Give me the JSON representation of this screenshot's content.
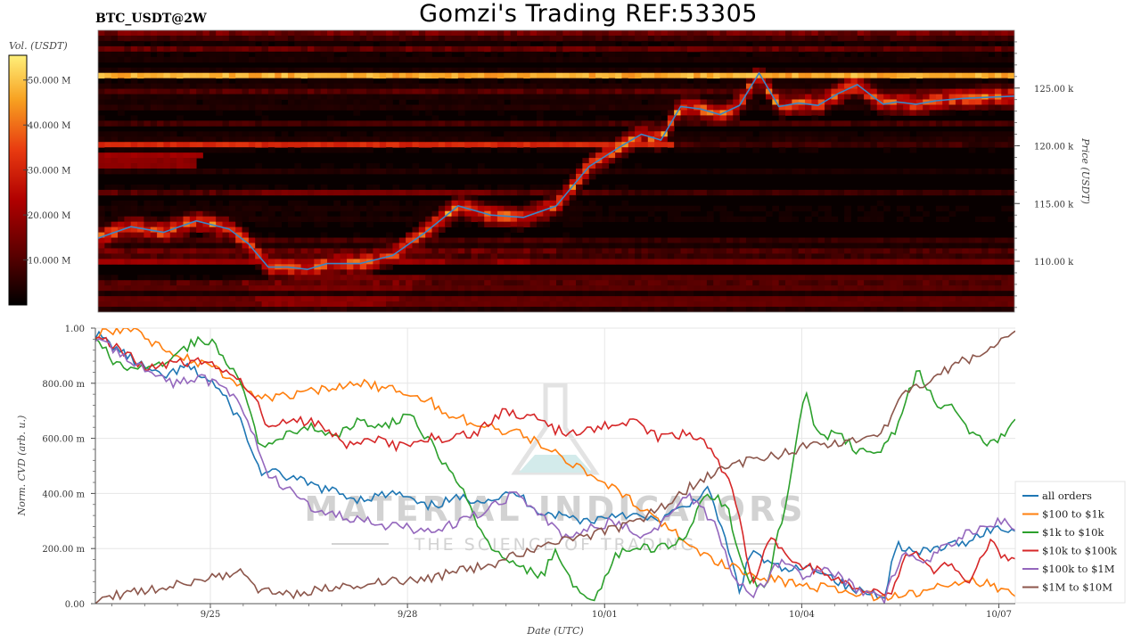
{
  "header": {
    "pair_label": "BTC_USDT@2W",
    "title": "Gomzi's Trading REF:53305"
  },
  "colorbar": {
    "label": "Vol. (USDT)",
    "ticks": [
      "50.000 M",
      "40.000 M",
      "30.000 M",
      "20.000 M",
      "10.000 M"
    ],
    "colors": [
      "#000000",
      "#5a0000",
      "#b00000",
      "#e83a10",
      "#f7a020",
      "#fff07a"
    ]
  },
  "watermark": {
    "main": "MATERIAL INDICATORS",
    "sub": "THE SCIENCE OF TRADING"
  },
  "chart_data": [
    {
      "type": "heatmap",
      "title": "BTC_USDT@2W",
      "ylabel": "Price (USDT)",
      "y_ticks": [
        "110.00 k",
        "115.00 k",
        "120.00 k",
        "125.00 k"
      ],
      "ylim": [
        105600,
        130000
      ],
      "price_series": {
        "name": "price",
        "color": "#3a86c8",
        "t": [
          0,
          0.5,
          1,
          1.5,
          2,
          2.3,
          2.6,
          2.9,
          3.2,
          3.5,
          4,
          4.5,
          5,
          5.5,
          6,
          6.5,
          7,
          7.5,
          8,
          8.3,
          8.6,
          8.9,
          9.2,
          9.5,
          9.8,
          10.1,
          10.4,
          10.7,
          11,
          11.3,
          11.6,
          11.9,
          12,
          12.2,
          12.5,
          12.8,
          13.2,
          13.6,
          14
        ],
        "values": [
          112000,
          113000,
          112500,
          113500,
          112800,
          111500,
          109500,
          109500,
          109300,
          109800,
          109800,
          110500,
          112500,
          114800,
          114000,
          113800,
          114800,
          118200,
          120000,
          121000,
          120500,
          123400,
          123200,
          122700,
          123500,
          126300,
          123400,
          123700,
          123500,
          124500,
          125300,
          124000,
          123600,
          123800,
          123600,
          123900,
          124100,
          124200,
          124300
        ]
      },
      "liquidity_bands": [
        {
          "price": 126200,
          "intensity": 0.92,
          "t_start": 0,
          "t_end": 14
        },
        {
          "price": 120000,
          "intensity": 0.6,
          "t_start": 0,
          "t_end": 8.8
        },
        {
          "price": 119100,
          "intensity": 0.4,
          "t_start": 0,
          "t_end": 1.6
        },
        {
          "price": 118500,
          "intensity": 0.35,
          "t_start": 0,
          "t_end": 1.5
        },
        {
          "price": 116000,
          "intensity": 0.3,
          "t_start": 2.5,
          "t_end": 6
        },
        {
          "price": 110000,
          "intensity": 0.4,
          "t_start": 0,
          "t_end": 14
        },
        {
          "price": 108500,
          "intensity": 0.3,
          "t_start": 3,
          "t_end": 14
        },
        {
          "price": 107500,
          "intensity": 0.3,
          "t_start": 0,
          "t_end": 14
        },
        {
          "price": 106500,
          "intensity": 0.35,
          "t_start": 0,
          "t_end": 14
        }
      ]
    },
    {
      "type": "line",
      "xlabel": "Date (UTC)",
      "ylabel": "Norm. CVD (arb. u.)",
      "x_ticks": [
        {
          "t": 1.75,
          "label": "9/25"
        },
        {
          "t": 4.75,
          "label": "9/28"
        },
        {
          "t": 7.75,
          "label": "10/01"
        },
        {
          "t": 10.75,
          "label": "10/04"
        },
        {
          "t": 13.75,
          "label": "10/07"
        }
      ],
      "y_ticks": [
        "0.00",
        "200.00 m",
        "400.00 m",
        "600.00 m",
        "800.00 m",
        "1.00"
      ],
      "ylim": [
        0,
        1
      ],
      "xlim": [
        0,
        14
      ],
      "grid": true,
      "legend_position": "right",
      "series": [
        {
          "name": "all orders",
          "color": "#1f77b4",
          "t": [
            0,
            0.3,
            0.6,
            1,
            1.4,
            1.8,
            2.2,
            2.5,
            2.8,
            3.3,
            4,
            4.6,
            5,
            5.5,
            6,
            6.4,
            6.8,
            7.1,
            7.5,
            8,
            8.5,
            9,
            9.3,
            9.5,
            9.8,
            10,
            10.2,
            10.5,
            11,
            11.5,
            12,
            12.2,
            12.5,
            12.8,
            13.2,
            13.6,
            14
          ],
          "values": [
            0.98,
            0.93,
            0.88,
            0.82,
            0.86,
            0.8,
            0.67,
            0.48,
            0.47,
            0.43,
            0.38,
            0.4,
            0.35,
            0.38,
            0.38,
            0.4,
            0.33,
            0.32,
            0.3,
            0.33,
            0.3,
            0.35,
            0.42,
            0.3,
            0.05,
            0.2,
            0.15,
            0.12,
            0.13,
            0.05,
            0.03,
            0.22,
            0.18,
            0.2,
            0.22,
            0.27,
            0.27
          ]
        },
        {
          "name": "$100 to $1k",
          "color": "#ff7f0e",
          "t": [
            0,
            0.5,
            1,
            1.5,
            2,
            2.3,
            2.6,
            3,
            3.5,
            4,
            4.5,
            5,
            5.3,
            5.7,
            6,
            6.4,
            6.8,
            7.2,
            7.6,
            8,
            8.5,
            9,
            9.5,
            10,
            10.5,
            11,
            11.5,
            12,
            12.5,
            13,
            13.5,
            14
          ],
          "values": [
            0.98,
            1.0,
            0.93,
            0.88,
            0.83,
            0.77,
            0.75,
            0.76,
            0.78,
            0.8,
            0.78,
            0.75,
            0.7,
            0.66,
            0.64,
            0.62,
            0.58,
            0.52,
            0.46,
            0.4,
            0.32,
            0.22,
            0.15,
            0.1,
            0.08,
            0.06,
            0.04,
            0.02,
            0.04,
            0.07,
            0.08,
            0.03
          ]
        },
        {
          "name": "$1k to $10k",
          "color": "#2ca02c",
          "t": [
            0,
            0.3,
            0.6,
            1,
            1.5,
            1.8,
            2.2,
            2.5,
            2.8,
            3.2,
            3.6,
            4,
            4.4,
            4.8,
            5.2,
            5.6,
            6,
            6.4,
            6.8,
            7,
            7.3,
            7.6,
            7.9,
            8.2,
            8.6,
            9,
            9.3,
            9.6,
            9.9,
            10.2,
            10.5,
            10.8,
            11,
            11.3,
            11.6,
            11.9,
            12.2,
            12.5,
            12.8,
            13.1,
            13.4,
            13.7,
            14
          ],
          "values": [
            0.98,
            0.87,
            0.85,
            0.87,
            0.95,
            0.95,
            0.8,
            0.58,
            0.6,
            0.65,
            0.6,
            0.66,
            0.65,
            0.68,
            0.55,
            0.4,
            0.2,
            0.14,
            0.1,
            0.2,
            0.05,
            0.0,
            0.18,
            0.2,
            0.2,
            0.25,
            0.4,
            0.36,
            0.1,
            0.05,
            0.36,
            0.78,
            0.6,
            0.62,
            0.55,
            0.55,
            0.63,
            0.85,
            0.73,
            0.7,
            0.6,
            0.58,
            0.67
          ]
        },
        {
          "name": "$10k to $100k",
          "color": "#d62728",
          "t": [
            0,
            0.4,
            0.8,
            1.2,
            1.6,
            2,
            2.4,
            2.6,
            3,
            3.4,
            3.8,
            4.2,
            4.6,
            5,
            5.4,
            5.8,
            6.2,
            6.6,
            7,
            7.4,
            7.8,
            8.2,
            8.6,
            9,
            9.3,
            9.7,
            10,
            10.3,
            10.6,
            11,
            11.4,
            11.8,
            12.1,
            12.4,
            12.7,
            13,
            13.3,
            13.6,
            13.8,
            14
          ],
          "values": [
            0.98,
            0.92,
            0.85,
            0.87,
            0.88,
            0.85,
            0.77,
            0.65,
            0.67,
            0.65,
            0.58,
            0.6,
            0.57,
            0.6,
            0.6,
            0.62,
            0.7,
            0.68,
            0.63,
            0.62,
            0.65,
            0.66,
            0.6,
            0.62,
            0.58,
            0.42,
            0.08,
            0.25,
            0.15,
            0.12,
            0.08,
            0.05,
            0.03,
            0.2,
            0.12,
            0.15,
            0.08,
            0.22,
            0.18,
            0.16
          ]
        },
        {
          "name": "$100k to $1M",
          "color": "#9467bd",
          "t": [
            0,
            0.4,
            0.8,
            1.2,
            1.6,
            2,
            2.3,
            2.6,
            3,
            3.3,
            3.7,
            4.1,
            4.5,
            4.9,
            5.3,
            5.6,
            6,
            6.4,
            6.8,
            7.1,
            7.5,
            7.9,
            8.3,
            8.6,
            9,
            9.4,
            9.7,
            10,
            10.4,
            10.8,
            11.2,
            11.6,
            12,
            12.3,
            12.6,
            12.9,
            13.2,
            13.5,
            13.8,
            14
          ],
          "values": [
            0.97,
            0.9,
            0.85,
            0.8,
            0.82,
            0.78,
            0.68,
            0.48,
            0.4,
            0.35,
            0.32,
            0.3,
            0.28,
            0.27,
            0.28,
            0.3,
            0.35,
            0.4,
            0.32,
            0.25,
            0.27,
            0.3,
            0.25,
            0.28,
            0.4,
            0.3,
            0.1,
            0.02,
            0.15,
            0.1,
            0.12,
            0.05,
            0.01,
            0.2,
            0.15,
            0.2,
            0.25,
            0.28,
            0.3,
            0.26
          ]
        },
        {
          "name": "$1M to $10M",
          "color": "#8c564b",
          "t": [
            0,
            0.3,
            0.7,
            1.1,
            1.5,
            1.9,
            2.2,
            2.5,
            2.8,
            3.1,
            3.4,
            3.7,
            4,
            4.4,
            4.8,
            5.2,
            5.6,
            6,
            6.4,
            6.8,
            7.2,
            7.6,
            8,
            8.4,
            8.8,
            9.2,
            9.6,
            10,
            10.4,
            10.8,
            11.2,
            11.6,
            12,
            12.3,
            12.6,
            12.9,
            13.2,
            13.5,
            13.8,
            14
          ],
          "values": [
            0.0,
            0.03,
            0.05,
            0.06,
            0.08,
            0.1,
            0.12,
            0.05,
            0.03,
            0.04,
            0.05,
            0.06,
            0.07,
            0.08,
            0.08,
            0.1,
            0.12,
            0.14,
            0.18,
            0.21,
            0.23,
            0.25,
            0.28,
            0.32,
            0.38,
            0.45,
            0.5,
            0.52,
            0.54,
            0.57,
            0.58,
            0.6,
            0.63,
            0.77,
            0.8,
            0.84,
            0.88,
            0.9,
            0.97,
            0.98
          ]
        }
      ]
    }
  ]
}
